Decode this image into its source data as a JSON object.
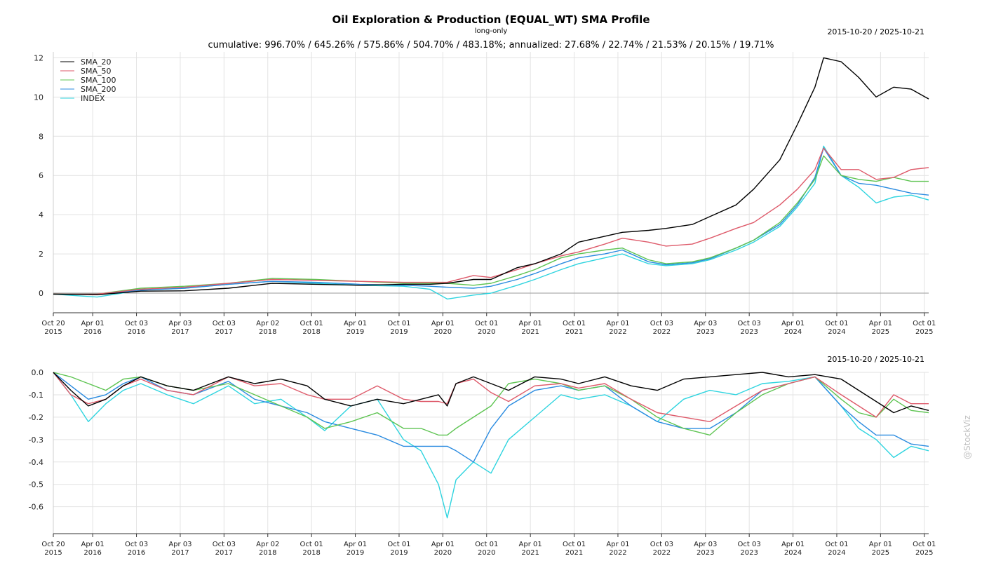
{
  "header": {
    "title": "Oil Exploration & Production (EQUAL_WT) SMA Profile",
    "subtitle": "long-only",
    "stats": "cumulative: 996.70% / 645.26% / 575.86% / 504.70% / 483.18%; annualized: 27.68% / 22.74% / 21.53% / 20.15% / 19.71%",
    "date_range_top": "2015-10-20 / 2025-10-21",
    "date_range_bottom": "2015-10-20 / 2025-10-21",
    "watermark": "@StockViz"
  },
  "colors": {
    "SMA_20": "#000000",
    "SMA_50": "#de5a6a",
    "SMA_100": "#5ec452",
    "SMA_200": "#2a8be0",
    "INDEX": "#2ed4df"
  },
  "x_ticks": [
    {
      "t": 0.0,
      "l1": "Oct 20",
      "l2": "2015"
    },
    {
      "t": 0.45,
      "l1": "Apr 01",
      "l2": "2016"
    },
    {
      "t": 0.95,
      "l1": "Oct 03",
      "l2": "2016"
    },
    {
      "t": 1.45,
      "l1": "Apr 03",
      "l2": "2017"
    },
    {
      "t": 1.95,
      "l1": "Oct 03",
      "l2": "2017"
    },
    {
      "t": 2.45,
      "l1": "Apr 02",
      "l2": "2018"
    },
    {
      "t": 2.95,
      "l1": "Oct 01",
      "l2": "2018"
    },
    {
      "t": 3.45,
      "l1": "Apr 01",
      "l2": "2019"
    },
    {
      "t": 3.95,
      "l1": "Oct 01",
      "l2": "2019"
    },
    {
      "t": 4.45,
      "l1": "Apr 01",
      "l2": "2020"
    },
    {
      "t": 4.95,
      "l1": "Oct 01",
      "l2": "2020"
    },
    {
      "t": 5.45,
      "l1": "Apr 01",
      "l2": "2021"
    },
    {
      "t": 5.95,
      "l1": "Oct 01",
      "l2": "2021"
    },
    {
      "t": 6.45,
      "l1": "Apr 01",
      "l2": "2022"
    },
    {
      "t": 6.95,
      "l1": "Oct 03",
      "l2": "2022"
    },
    {
      "t": 7.45,
      "l1": "Apr 03",
      "l2": "2023"
    },
    {
      "t": 7.95,
      "l1": "Oct 03",
      "l2": "2023"
    },
    {
      "t": 8.45,
      "l1": "Apr 01",
      "l2": "2024"
    },
    {
      "t": 8.95,
      "l1": "Oct 01",
      "l2": "2024"
    },
    {
      "t": 9.45,
      "l1": "Apr 01",
      "l2": "2025"
    },
    {
      "t": 9.95,
      "l1": "Oct 01",
      "l2": "2025"
    }
  ],
  "chart_data": [
    {
      "type": "line",
      "xlabel": "",
      "ylabel": "",
      "x_unit": "years since 2015-10-20",
      "xlim": [
        0,
        10.0
      ],
      "ylim": [
        -1.0,
        12.3
      ],
      "yticks": [
        0,
        2,
        4,
        6,
        8,
        10,
        12
      ],
      "grid": true,
      "legend": "top-left",
      "x": [
        0,
        0.5,
        1,
        1.5,
        2,
        2.5,
        3,
        3.5,
        4,
        4.3,
        4.5,
        4.8,
        5,
        5.3,
        5.5,
        5.8,
        6,
        6.3,
        6.5,
        6.8,
        7,
        7.3,
        7.5,
        7.8,
        8,
        8.3,
        8.5,
        8.7,
        8.8,
        9,
        9.2,
        9.4,
        9.6,
        9.8,
        10
      ],
      "series": [
        {
          "name": "SMA_20",
          "values": [
            -0.05,
            -0.08,
            0.1,
            0.12,
            0.25,
            0.5,
            0.45,
            0.4,
            0.45,
            0.45,
            0.5,
            0.7,
            0.7,
            1.3,
            1.5,
            2.0,
            2.6,
            2.9,
            3.1,
            3.2,
            3.3,
            3.5,
            3.9,
            4.5,
            5.3,
            6.8,
            8.6,
            10.5,
            12.0,
            11.8,
            11.0,
            10.0,
            10.5,
            10.4,
            9.9
          ]
        },
        {
          "name": "SMA_50",
          "values": [
            -0.05,
            -0.05,
            0.2,
            0.3,
            0.5,
            0.7,
            0.65,
            0.6,
            0.55,
            0.55,
            0.55,
            0.9,
            0.8,
            1.2,
            1.5,
            1.9,
            2.1,
            2.5,
            2.8,
            2.6,
            2.4,
            2.5,
            2.8,
            3.3,
            3.6,
            4.5,
            5.3,
            6.3,
            7.4,
            6.3,
            6.3,
            5.8,
            5.9,
            6.3,
            6.4
          ]
        },
        {
          "name": "SMA_100",
          "values": [
            -0.05,
            -0.05,
            0.25,
            0.35,
            0.5,
            0.75,
            0.7,
            0.6,
            0.5,
            0.5,
            0.5,
            0.4,
            0.5,
            0.9,
            1.2,
            1.8,
            2.0,
            2.2,
            2.3,
            1.7,
            1.5,
            1.6,
            1.8,
            2.3,
            2.7,
            3.6,
            4.6,
            5.8,
            7.0,
            6.0,
            5.8,
            5.7,
            5.9,
            5.7,
            5.7
          ]
        },
        {
          "name": "SMA_200",
          "values": [
            -0.05,
            -0.05,
            0.15,
            0.25,
            0.45,
            0.6,
            0.55,
            0.45,
            0.4,
            0.35,
            0.3,
            0.25,
            0.35,
            0.7,
            1.0,
            1.5,
            1.8,
            2.0,
            2.2,
            1.6,
            1.45,
            1.55,
            1.75,
            2.3,
            2.7,
            3.5,
            4.5,
            5.9,
            7.4,
            6.0,
            5.6,
            5.5,
            5.3,
            5.1,
            5.0
          ]
        },
        {
          "name": "INDEX",
          "values": [
            -0.05,
            -0.2,
            0.15,
            0.25,
            0.45,
            0.6,
            0.5,
            0.4,
            0.35,
            0.2,
            -0.3,
            -0.1,
            0.0,
            0.4,
            0.7,
            1.2,
            1.5,
            1.8,
            2.0,
            1.5,
            1.4,
            1.5,
            1.7,
            2.2,
            2.6,
            3.4,
            4.4,
            5.6,
            7.5,
            6.0,
            5.4,
            4.6,
            4.9,
            5.0,
            4.75
          ]
        }
      ]
    },
    {
      "type": "line",
      "xlabel": "",
      "ylabel": "",
      "x_unit": "years since 2015-10-20",
      "xlim": [
        0,
        10.0
      ],
      "ylim": [
        -0.72,
        0.0
      ],
      "yticks": [
        0.0,
        -0.1,
        -0.2,
        -0.3,
        -0.4,
        -0.5,
        -0.6
      ],
      "grid": true,
      "x": [
        0,
        0.2,
        0.4,
        0.6,
        0.8,
        1,
        1.3,
        1.6,
        2,
        2.3,
        2.6,
        2.9,
        3.1,
        3.4,
        3.7,
        4,
        4.2,
        4.4,
        4.5,
        4.6,
        4.8,
        5,
        5.2,
        5.5,
        5.8,
        6,
        6.3,
        6.6,
        6.9,
        7.2,
        7.5,
        7.8,
        8.1,
        8.4,
        8.7,
        9,
        9.2,
        9.4,
        9.6,
        9.8,
        10
      ],
      "series": [
        {
          "name": "SMA_20",
          "values": [
            0,
            -0.08,
            -0.15,
            -0.12,
            -0.06,
            -0.02,
            -0.06,
            -0.08,
            -0.02,
            -0.05,
            -0.03,
            -0.06,
            -0.12,
            -0.15,
            -0.12,
            -0.14,
            -0.12,
            -0.1,
            -0.15,
            -0.05,
            -0.02,
            -0.05,
            -0.08,
            -0.02,
            -0.03,
            -0.05,
            -0.02,
            -0.06,
            -0.08,
            -0.03,
            -0.02,
            -0.01,
            0,
            -0.02,
            -0.01,
            -0.03,
            -0.08,
            -0.13,
            -0.18,
            -0.15,
            -0.17
          ]
        },
        {
          "name": "SMA_50",
          "values": [
            0,
            -0.1,
            -0.14,
            -0.12,
            -0.06,
            -0.03,
            -0.08,
            -0.1,
            -0.02,
            -0.06,
            -0.05,
            -0.1,
            -0.12,
            -0.12,
            -0.06,
            -0.12,
            -0.13,
            -0.13,
            -0.14,
            -0.05,
            -0.03,
            -0.09,
            -0.13,
            -0.06,
            -0.05,
            -0.07,
            -0.05,
            -0.12,
            -0.18,
            -0.2,
            -0.22,
            -0.15,
            -0.08,
            -0.05,
            -0.02,
            -0.1,
            -0.15,
            -0.2,
            -0.1,
            -0.14,
            -0.14
          ]
        },
        {
          "name": "SMA_100",
          "values": [
            0,
            -0.02,
            -0.05,
            -0.08,
            -0.03,
            -0.02,
            -0.06,
            -0.08,
            -0.05,
            -0.1,
            -0.15,
            -0.2,
            -0.25,
            -0.22,
            -0.18,
            -0.25,
            -0.25,
            -0.28,
            -0.28,
            -0.25,
            -0.2,
            -0.15,
            -0.05,
            -0.03,
            -0.05,
            -0.08,
            -0.06,
            -0.12,
            -0.2,
            -0.25,
            -0.28,
            -0.18,
            -0.1,
            -0.05,
            -0.02,
            -0.12,
            -0.18,
            -0.2,
            -0.12,
            -0.17,
            -0.18
          ]
        },
        {
          "name": "SMA_200",
          "values": [
            0,
            -0.06,
            -0.12,
            -0.1,
            -0.05,
            -0.02,
            -0.08,
            -0.1,
            -0.04,
            -0.12,
            -0.15,
            -0.18,
            -0.22,
            -0.25,
            -0.28,
            -0.33,
            -0.33,
            -0.33,
            -0.33,
            -0.35,
            -0.4,
            -0.25,
            -0.15,
            -0.08,
            -0.06,
            -0.08,
            -0.06,
            -0.15,
            -0.22,
            -0.25,
            -0.25,
            -0.18,
            -0.08,
            -0.05,
            -0.02,
            -0.15,
            -0.22,
            -0.28,
            -0.28,
            -0.32,
            -0.33
          ]
        },
        {
          "name": "INDEX",
          "values": [
            0,
            -0.1,
            -0.22,
            -0.14,
            -0.08,
            -0.05,
            -0.1,
            -0.14,
            -0.06,
            -0.14,
            -0.12,
            -0.2,
            -0.26,
            -0.15,
            -0.12,
            -0.3,
            -0.35,
            -0.5,
            -0.65,
            -0.48,
            -0.4,
            -0.45,
            -0.3,
            -0.2,
            -0.1,
            -0.12,
            -0.1,
            -0.15,
            -0.22,
            -0.12,
            -0.08,
            -0.1,
            -0.05,
            -0.04,
            -0.02,
            -0.15,
            -0.25,
            -0.3,
            -0.38,
            -0.33,
            -0.35
          ]
        }
      ]
    }
  ]
}
